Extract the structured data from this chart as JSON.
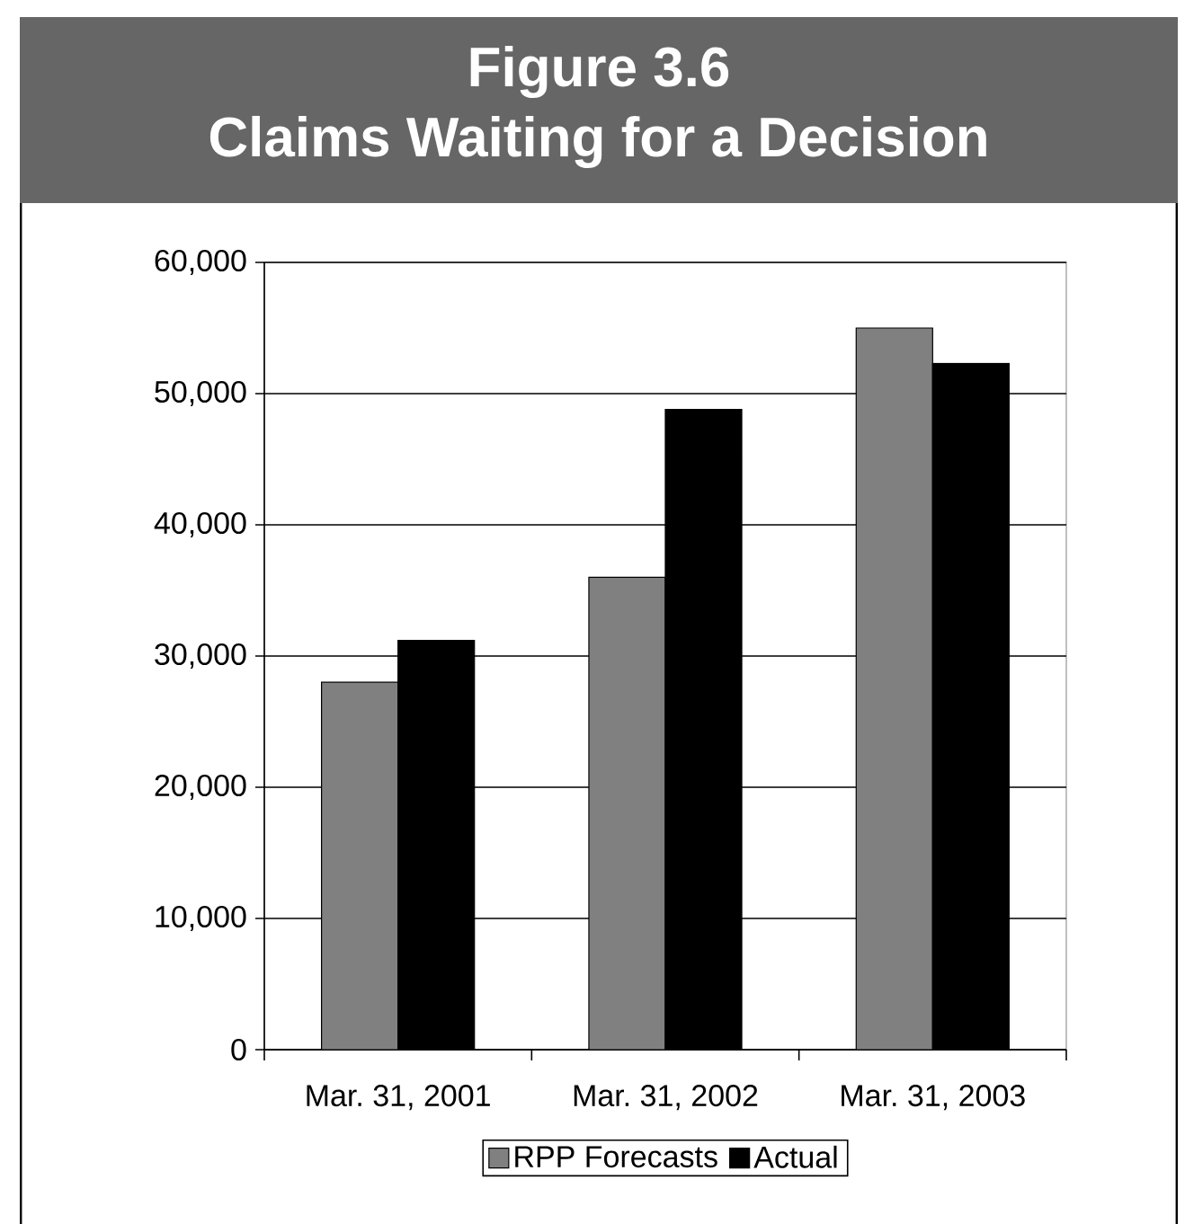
{
  "chart_data": {
    "type": "bar",
    "title": "Figure 3.6",
    "subtitle": "Claims Waiting for a Decision",
    "categories": [
      "Mar. 31, 2001",
      "Mar. 31, 2002",
      "Mar. 31, 2003"
    ],
    "series": [
      {
        "name": "RPP Forecasts",
        "color": "#808080",
        "values": [
          28000,
          36000,
          55000
        ]
      },
      {
        "name": "Actual",
        "color": "#000000",
        "values": [
          31200,
          48800,
          52300
        ]
      }
    ],
    "ylim": [
      0,
      60000
    ],
    "yticks": [
      0,
      {
        "value": 10000,
        "label": "10,000"
      },
      {
        "value": 20000,
        "label": "20,000"
      },
      {
        "value": 30000,
        "label": "30,000"
      },
      {
        "value": 40000,
        "label": "40,000"
      },
      {
        "value": 50000,
        "label": "50,000"
      },
      {
        "value": 60000,
        "label": "60,000"
      }
    ],
    "grid": "y",
    "legend": "bottom"
  }
}
